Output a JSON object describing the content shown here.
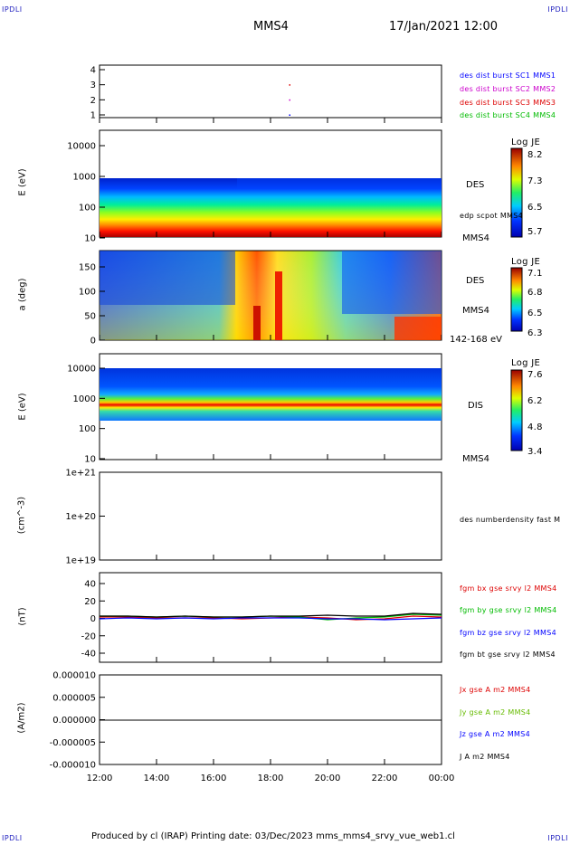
{
  "corner_labels": {
    "tl": "IPDLI",
    "tr": "IPDLI",
    "bl": "IPDLI",
    "br": "IPDLI"
  },
  "header": {
    "spacecraft": "MMS4",
    "datetime": "17/Jan/2021 12:00"
  },
  "footer": {
    "text": "Produced by cl (IRAP)   Printing date: 03/Dec/2023   mms_mms4_srvy_vue_web1.cl"
  },
  "panels": {
    "burst": {
      "ticks": [
        "1",
        "2",
        "3",
        "4"
      ],
      "legend": [
        {
          "text": "des dist burst SC1 MMS1",
          "color": "#0000ff"
        },
        {
          "text": "des dist burst SC2 MMS2",
          "color": "#cc00cc"
        },
        {
          "text": "des dist burst SC3 MMS3",
          "color": "#dd0000"
        },
        {
          "text": "des dist burst SC4 MMS4",
          "color": "#00bb00"
        }
      ]
    },
    "des_e": {
      "ylabel": "E (eV)",
      "ticks": [
        "10",
        "100",
        "1000",
        "10000"
      ],
      "tag": "DES",
      "sub": "edp scpot MMS4",
      "sc": "MMS4",
      "cbar": {
        "title": "Log JE",
        "max": "8.2",
        "mid1": "7.3",
        "mid2": "6.5",
        "min": "5.7"
      }
    },
    "des_pa": {
      "ylabel": "a (deg)",
      "ticks": [
        "0",
        "50",
        "100",
        "150"
      ],
      "tag": "DES",
      "sc": "MMS4",
      "range": "142-168 eV",
      "cbar": {
        "title": "Log JE",
        "max": "7.1",
        "mid1": "6.8",
        "mid2": "6.5",
        "min": "6.3"
      }
    },
    "dis_e": {
      "ylabel": "E (eV)",
      "ticks": [
        "10",
        "100",
        "1000",
        "10000"
      ],
      "tag": "DIS",
      "sc": "MMS4",
      "cbar": {
        "title": "Log JE",
        "max": "7.6",
        "mid1": "6.2",
        "mid2": "4.8",
        "min": "3.4"
      }
    },
    "dens": {
      "ylabel": "(cm^-3)",
      "ticks": [
        "1e+19",
        "1e+20",
        "1e+21"
      ],
      "legend": "des numberdensity fast M"
    },
    "fgm": {
      "ylabel": "(nT)",
      "ticks": [
        "-40",
        "-20",
        "0",
        "20",
        "40"
      ],
      "legend": [
        {
          "text": "fgm bx gse srvy l2 MMS4",
          "color": "#dd0000"
        },
        {
          "text": "fgm by gse srvy l2 MMS4",
          "color": "#00bb00"
        },
        {
          "text": "fgm bz gse srvy l2 MMS4",
          "color": "#0000ff"
        },
        {
          "text": "fgm bt gse srvy l2 MMS4",
          "color": "#000000"
        }
      ]
    },
    "curr": {
      "ylabel": "(A/m2)",
      "ticks": [
        "-0.000010",
        "-0.000005",
        "0.000000",
        "0.000005",
        "0.000010"
      ],
      "legend": [
        {
          "text": "Jx gse A m2 MMS4",
          "color": "#dd0000"
        },
        {
          "text": "Jy gse A m2 MMS4",
          "color": "#66bb00"
        },
        {
          "text": "Jz gse A m2 MMS4",
          "color": "#0000ff"
        },
        {
          "text": "J A m2 MMS4",
          "color": "#000000"
        }
      ]
    }
  },
  "time_axis": [
    "12:00",
    "14:00",
    "16:00",
    "18:00",
    "20:00",
    "22:00",
    "00:00"
  ],
  "chart_data": {
    "type": "heatmap",
    "x_range": [
      "12:00",
      "00:00"
    ],
    "burst_points": [
      {
        "time": "18:40",
        "sc": 3
      },
      {
        "time": "18:40",
        "sc": 2
      },
      {
        "time": "18:40",
        "sc": 1
      }
    ],
    "fgm_series": [
      {
        "name": "fgm bx gse srvy l2 MMS4",
        "values": [
          1,
          1,
          0,
          0,
          0,
          -1,
          0,
          1,
          0,
          -2,
          -1,
          2,
          1
        ]
      },
      {
        "name": "fgm by gse srvy l2 MMS4",
        "values": [
          2,
          2,
          1,
          2,
          1,
          1,
          2,
          1,
          -2,
          0,
          1,
          4,
          3
        ]
      },
      {
        "name": "fgm bz gse srvy l2 MMS4",
        "values": [
          -1,
          0,
          -1,
          0,
          -1,
          0,
          0,
          0,
          -1,
          -1,
          -2,
          -1,
          0
        ]
      },
      {
        "name": "fgm bt gse srvy l2 MMS4",
        "values": [
          2,
          2,
          1,
          2,
          1,
          1,
          2,
          2,
          3,
          2,
          2,
          5,
          4
        ]
      }
    ],
    "fgm_ylim": [
      -50,
      50
    ],
    "curr_ylim": [
      -1e-05,
      1e-05
    ]
  }
}
